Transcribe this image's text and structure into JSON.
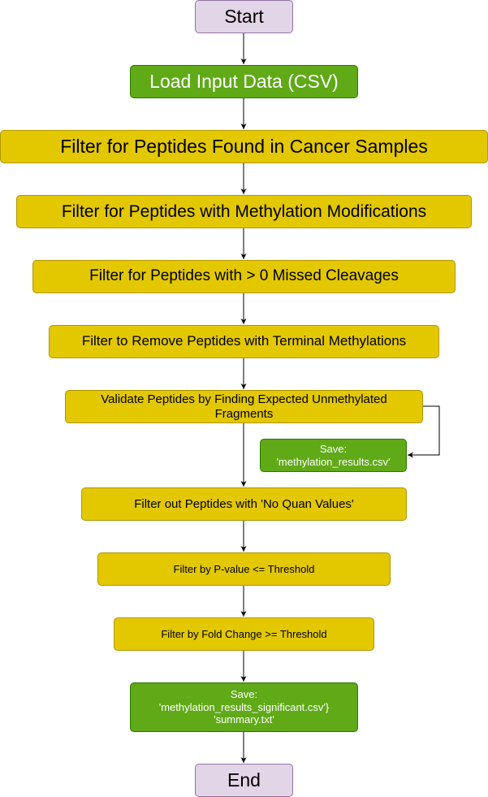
{
  "nodes": {
    "start": "Start",
    "load": "Load Input Data (CSV)",
    "filter_cancer": "Filter for Peptides Found in Cancer Samples",
    "filter_methylation": "Filter for Peptides with Methylation Modifications",
    "filter_missed": "Filter for Peptides with > 0 Missed Cleavages",
    "filter_terminal": "Filter to Remove Peptides with Terminal Methylations",
    "validate": "Validate Peptides by Finding Expected Unmethylated Fragments",
    "save_results": "Save:\n'methylation_results.csv'",
    "filter_quan": "Filter out Peptides with 'No Quan Values'",
    "filter_pvalue": "Filter by P-value <= Threshold",
    "filter_fold": "Filter by Fold Change >= Threshold",
    "save_significant": "Save:\n'methylation_results_significant.csv'}\n'summary.txt'",
    "end": "End"
  },
  "colors": {
    "terminal_fill": "#e1d5e7",
    "terminal_stroke": "#9673a6",
    "io_fill": "#60a917",
    "io_stroke": "#2d7600",
    "process_fill": "#e3c800",
    "process_stroke": "#b09500",
    "edge": "#000000"
  }
}
